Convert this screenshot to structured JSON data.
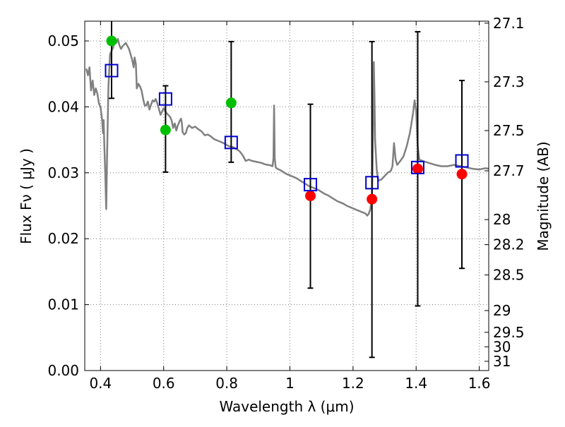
{
  "chart_data": {
    "type": "scatter",
    "xlabel": "Wavelength  λ (μm)",
    "ylabel": "Flux  Fν  ( μJy )",
    "y2label": "Magnitude (AB)",
    "xlim": [
      0.35,
      1.63
    ],
    "ylim": [
      0.0,
      0.053
    ],
    "xticks": [
      0.4,
      0.6,
      0.8,
      1.0,
      1.2,
      1.4,
      1.6
    ],
    "xtick_labels": [
      "0.4",
      "0.6",
      "0.8",
      "1",
      "1.2",
      "1.4",
      "1.6"
    ],
    "yticks": [
      0.0,
      0.01,
      0.02,
      0.03,
      0.04,
      0.05
    ],
    "ytick_labels": [
      "0.00",
      "0.01",
      "0.02",
      "0.03",
      "0.04",
      "0.05"
    ],
    "y2ticks": [
      {
        "label": "27.1",
        "flux": 0.0527
      },
      {
        "label": "27.3",
        "flux": 0.0438
      },
      {
        "label": "27.5",
        "flux": 0.0364
      },
      {
        "label": "27.7",
        "flux": 0.0303
      },
      {
        "label": "28",
        "flux": 0.0229
      },
      {
        "label": "28.2",
        "flux": 0.0191
      },
      {
        "label": "28.5",
        "flux": 0.0145
      },
      {
        "label": "29",
        "flux": 0.0091
      },
      {
        "label": "29.5",
        "flux": 0.0058
      },
      {
        "label": "30",
        "flux": 0.0036
      },
      {
        "label": "31",
        "flux": 0.0014
      }
    ],
    "grid": true,
    "grid_color": "#7f7f7f",
    "template_color": "#808080",
    "green_color": "#00bf00",
    "red_color": "#ff0000",
    "model_color": "#0000cc",
    "errorbar_color": "#000000",
    "template_spectrum": [
      [
        0.355,
        0.0458
      ],
      [
        0.36,
        0.0448
      ],
      [
        0.365,
        0.046
      ],
      [
        0.37,
        0.0425
      ],
      [
        0.375,
        0.044
      ],
      [
        0.38,
        0.0418
      ],
      [
        0.385,
        0.0428
      ],
      [
        0.39,
        0.042
      ],
      [
        0.395,
        0.0405
      ],
      [
        0.4,
        0.04
      ],
      [
        0.405,
        0.038
      ],
      [
        0.408,
        0.036
      ],
      [
        0.41,
        0.038
      ],
      [
        0.412,
        0.0342
      ],
      [
        0.415,
        0.03
      ],
      [
        0.418,
        0.0245
      ],
      [
        0.421,
        0.033
      ],
      [
        0.425,
        0.043
      ],
      [
        0.43,
        0.048
      ],
      [
        0.435,
        0.0485
      ],
      [
        0.44,
        0.049
      ],
      [
        0.445,
        0.0502
      ],
      [
        0.45,
        0.0497
      ],
      [
        0.455,
        0.0503
      ],
      [
        0.46,
        0.0493
      ],
      [
        0.465,
        0.0488
      ],
      [
        0.47,
        0.0492
      ],
      [
        0.48,
        0.0497
      ],
      [
        0.49,
        0.0488
      ],
      [
        0.5,
        0.0472
      ],
      [
        0.505,
        0.046
      ],
      [
        0.508,
        0.0475
      ],
      [
        0.512,
        0.0465
      ],
      [
        0.515,
        0.0428
      ],
      [
        0.52,
        0.0435
      ],
      [
        0.525,
        0.0431
      ],
      [
        0.53,
        0.0425
      ],
      [
        0.535,
        0.0412
      ],
      [
        0.54,
        0.0402
      ],
      [
        0.545,
        0.0402
      ],
      [
        0.55,
        0.0408
      ],
      [
        0.555,
        0.0396
      ],
      [
        0.56,
        0.0403
      ],
      [
        0.565,
        0.041
      ],
      [
        0.57,
        0.0408
      ],
      [
        0.575,
        0.0412
      ],
      [
        0.58,
        0.0405
      ],
      [
        0.59,
        0.0388
      ],
      [
        0.6,
        0.0398
      ],
      [
        0.61,
        0.039
      ],
      [
        0.62,
        0.0385
      ],
      [
        0.625,
        0.038
      ],
      [
        0.63,
        0.0368
      ],
      [
        0.635,
        0.0375
      ],
      [
        0.64,
        0.0364
      ],
      [
        0.645,
        0.0372
      ],
      [
        0.65,
        0.0378
      ],
      [
        0.655,
        0.0382
      ],
      [
        0.658,
        0.0375
      ],
      [
        0.66,
        0.0362
      ],
      [
        0.665,
        0.0358
      ],
      [
        0.67,
        0.036
      ],
      [
        0.675,
        0.0368
      ],
      [
        0.68,
        0.0372
      ],
      [
        0.69,
        0.0368
      ],
      [
        0.7,
        0.037
      ],
      [
        0.71,
        0.0366
      ],
      [
        0.72,
        0.0363
      ],
      [
        0.73,
        0.0357
      ],
      [
        0.74,
        0.0358
      ],
      [
        0.75,
        0.0355
      ],
      [
        0.76,
        0.0351
      ],
      [
        0.77,
        0.0349
      ],
      [
        0.78,
        0.0347
      ],
      [
        0.79,
        0.0345
      ],
      [
        0.8,
        0.0342
      ],
      [
        0.81,
        0.034
      ],
      [
        0.82,
        0.0339
      ],
      [
        0.83,
        0.0336
      ],
      [
        0.84,
        0.0333
      ],
      [
        0.85,
        0.0327
      ],
      [
        0.86,
        0.0318
      ],
      [
        0.87,
        0.032
      ],
      [
        0.88,
        0.0318
      ],
      [
        0.89,
        0.0317
      ],
      [
        0.9,
        0.0316
      ],
      [
        0.91,
        0.0315
      ],
      [
        0.92,
        0.0313
      ],
      [
        0.93,
        0.0312
      ],
      [
        0.94,
        0.0311
      ],
      [
        0.945,
        0.031
      ],
      [
        0.948,
        0.0322
      ],
      [
        0.95,
        0.0402
      ],
      [
        0.952,
        0.0322
      ],
      [
        0.955,
        0.0308
      ],
      [
        0.96,
        0.0306
      ],
      [
        0.97,
        0.0304
      ],
      [
        0.98,
        0.0301
      ],
      [
        0.99,
        0.0298
      ],
      [
        1.0,
        0.0296
      ],
      [
        1.01,
        0.0294
      ],
      [
        1.02,
        0.0292
      ],
      [
        1.03,
        0.0289
      ],
      [
        1.04,
        0.0286
      ],
      [
        1.05,
        0.0283
      ],
      [
        1.06,
        0.028
      ],
      [
        1.07,
        0.0278
      ],
      [
        1.08,
        0.0276
      ],
      [
        1.09,
        0.0274
      ],
      [
        1.1,
        0.0271
      ],
      [
        1.11,
        0.0268
      ],
      [
        1.12,
        0.0266
      ],
      [
        1.13,
        0.0263
      ],
      [
        1.14,
        0.026
      ],
      [
        1.15,
        0.0257
      ],
      [
        1.16,
        0.0255
      ],
      [
        1.17,
        0.0253
      ],
      [
        1.18,
        0.025
      ],
      [
        1.19,
        0.0248
      ],
      [
        1.2,
        0.0246
      ],
      [
        1.21,
        0.0244
      ],
      [
        1.22,
        0.0242
      ],
      [
        1.23,
        0.024
      ],
      [
        1.24,
        0.0238
      ],
      [
        1.245,
        0.0235
      ],
      [
        1.25,
        0.0238
      ],
      [
        1.255,
        0.0245
      ],
      [
        1.26,
        0.0265
      ],
      [
        1.262,
        0.031
      ],
      [
        1.264,
        0.038
      ],
      [
        1.266,
        0.0468
      ],
      [
        1.268,
        0.042
      ],
      [
        1.27,
        0.035
      ],
      [
        1.275,
        0.0305
      ],
      [
        1.28,
        0.0288
      ],
      [
        1.29,
        0.029
      ],
      [
        1.3,
        0.0295
      ],
      [
        1.31,
        0.03
      ],
      [
        1.32,
        0.0303
      ],
      [
        1.325,
        0.031
      ],
      [
        1.33,
        0.0345
      ],
      [
        1.335,
        0.032
      ],
      [
        1.34,
        0.0312
      ],
      [
        1.35,
        0.0318
      ],
      [
        1.36,
        0.0325
      ],
      [
        1.37,
        0.034
      ],
      [
        1.38,
        0.036
      ],
      [
        1.39,
        0.039
      ],
      [
        1.395,
        0.041
      ],
      [
        1.4,
        0.0395
      ],
      [
        1.405,
        0.034
      ],
      [
        1.41,
        0.032
      ],
      [
        1.42,
        0.0318
      ],
      [
        1.44,
        0.0315
      ],
      [
        1.46,
        0.0312
      ],
      [
        1.48,
        0.031
      ],
      [
        1.5,
        0.031
      ],
      [
        1.52,
        0.0312
      ],
      [
        1.54,
        0.031
      ],
      [
        1.56,
        0.0308
      ],
      [
        1.58,
        0.0306
      ],
      [
        1.6,
        0.0305
      ],
      [
        1.61,
        0.0306
      ],
      [
        1.62,
        0.0307
      ],
      [
        1.63,
        0.0306
      ]
    ],
    "observed_green": [
      {
        "x": 0.435,
        "y": 0.05
      },
      {
        "x": 0.606,
        "y": 0.0365
      },
      {
        "x": 0.814,
        "y": 0.0406
      }
    ],
    "observed_red": [
      {
        "x": 1.065,
        "y": 0.0265
      },
      {
        "x": 1.26,
        "y": 0.026
      },
      {
        "x": 1.405,
        "y": 0.0306
      },
      {
        "x": 1.545,
        "y": 0.0298
      }
    ],
    "model_squares": [
      {
        "x": 0.435,
        "y": 0.0455
      },
      {
        "x": 0.606,
        "y": 0.0412
      },
      {
        "x": 0.814,
        "y": 0.0346
      },
      {
        "x": 1.065,
        "y": 0.0282
      },
      {
        "x": 1.26,
        "y": 0.0285
      },
      {
        "x": 1.405,
        "y": 0.0308
      },
      {
        "x": 1.545,
        "y": 0.0318
      }
    ],
    "error_bars": [
      {
        "x": 0.435,
        "low": 0.0413,
        "high": 0.0535
      },
      {
        "x": 0.606,
        "low": 0.0301,
        "high": 0.0432
      },
      {
        "x": 0.814,
        "low": 0.0316,
        "high": 0.0499
      },
      {
        "x": 1.065,
        "low": 0.0125,
        "high": 0.0404
      },
      {
        "x": 1.26,
        "low": 0.002,
        "high": 0.0499
      },
      {
        "x": 1.405,
        "low": 0.0098,
        "high": 0.0514
      },
      {
        "x": 1.545,
        "low": 0.0155,
        "high": 0.044
      }
    ]
  }
}
